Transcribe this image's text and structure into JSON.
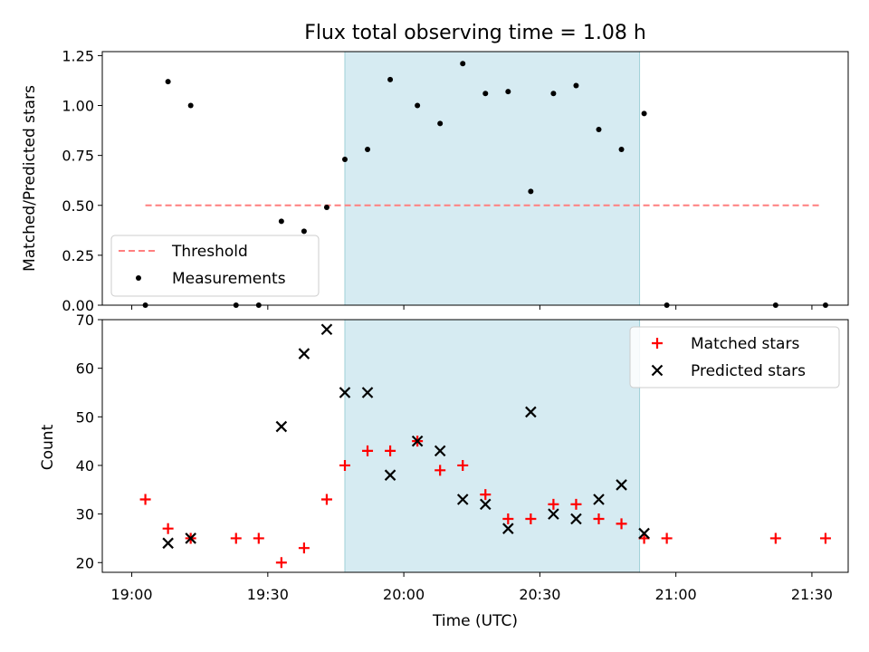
{
  "chart_data": [
    {
      "type": "scatter",
      "title": "Flux total observing time = 1.08 h",
      "xlabel": "",
      "ylabel": "Matched/Predicted stars",
      "ylim": [
        0.0,
        1.27
      ],
      "yticks": [
        "0.00",
        "0.25",
        "0.50",
        "0.75",
        "1.00",
        "1.25"
      ],
      "highlight_span": {
        "start": "19:47",
        "end": "20:52",
        "color": "#add8e6"
      },
      "legend_position": "lower-left",
      "series": [
        {
          "name": "Threshold",
          "style": "dashed-line",
          "color": "#ff7f7f",
          "x": [
            "19:03",
            "21:32"
          ],
          "y": [
            0.5,
            0.5
          ]
        },
        {
          "name": "Measurements",
          "style": "dot",
          "color": "#000000",
          "x": [
            "19:03",
            "19:08",
            "19:13",
            "19:23",
            "19:28",
            "19:33",
            "19:38",
            "19:43",
            "19:47",
            "19:52",
            "19:57",
            "20:03",
            "20:08",
            "20:13",
            "20:18",
            "20:23",
            "20:28",
            "20:33",
            "20:38",
            "20:43",
            "20:48",
            "20:53",
            "20:58",
            "21:22",
            "21:33"
          ],
          "y": [
            0.0,
            1.12,
            1.0,
            0.0,
            0.0,
            0.42,
            0.37,
            0.49,
            0.73,
            0.78,
            1.13,
            1.0,
            0.91,
            1.21,
            1.06,
            1.07,
            0.57,
            1.06,
            1.1,
            0.88,
            0.78,
            0.96,
            0.0,
            0.0,
            0.0
          ]
        }
      ]
    },
    {
      "type": "scatter",
      "title": "",
      "xlabel": "Time (UTC)",
      "ylabel": "Count",
      "ylim": [
        18,
        70
      ],
      "yticks": [
        "20",
        "30",
        "40",
        "50",
        "60",
        "70"
      ],
      "xticks": [
        "19:00",
        "19:30",
        "20:00",
        "20:30",
        "21:00",
        "21:30"
      ],
      "highlight_span": {
        "start": "19:47",
        "end": "20:52",
        "color": "#add8e6"
      },
      "legend_position": "upper-right",
      "series": [
        {
          "name": "Matched stars",
          "marker": "plus",
          "color": "#ff0000",
          "x": [
            "19:03",
            "19:08",
            "19:13",
            "19:23",
            "19:28",
            "19:33",
            "19:38",
            "19:43",
            "19:47",
            "19:52",
            "19:57",
            "20:03",
            "20:08",
            "20:13",
            "20:18",
            "20:23",
            "20:28",
            "20:33",
            "20:38",
            "20:43",
            "20:48",
            "20:53",
            "20:58",
            "21:22",
            "21:33"
          ],
          "y": [
            33,
            27,
            25,
            25,
            25,
            20,
            23,
            33,
            40,
            43,
            43,
            45,
            39,
            40,
            34,
            29,
            29,
            32,
            32,
            29,
            28,
            25,
            25,
            25,
            25
          ]
        },
        {
          "name": "Predicted stars",
          "marker": "x",
          "color": "#000000",
          "x": [
            "19:08",
            "19:13",
            "19:33",
            "19:38",
            "19:43",
            "19:47",
            "19:52",
            "19:57",
            "20:03",
            "20:08",
            "20:13",
            "20:18",
            "20:23",
            "20:28",
            "20:33",
            "20:38",
            "20:43",
            "20:48",
            "20:53"
          ],
          "y": [
            24,
            25,
            48,
            63,
            68,
            55,
            55,
            38,
            45,
            43,
            33,
            32,
            27,
            51,
            30,
            29,
            33,
            36,
            26
          ]
        }
      ]
    }
  ]
}
